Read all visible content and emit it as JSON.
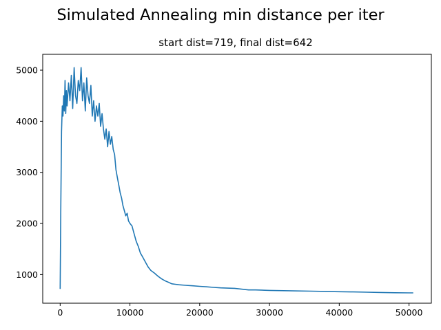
{
  "figure": {
    "suptitle": "Simulated Annealing min distance per iter"
  },
  "chart_data": {
    "type": "line",
    "title": "start dist=719, final dist=642",
    "xlabel": "",
    "ylabel": "",
    "xlim": [
      -2500,
      53200
    ],
    "ylim": [
      440,
      5310
    ],
    "grid": false,
    "legend": "none",
    "line_color": "#1f77b4",
    "x_ticks": [
      0,
      10000,
      20000,
      30000,
      40000,
      50000
    ],
    "x_tick_labels": [
      "0",
      "10000",
      "20000",
      "30000",
      "40000",
      "50000"
    ],
    "y_ticks": [
      1000,
      2000,
      3000,
      4000,
      5000
    ],
    "y_tick_labels": [
      "1000",
      "2000",
      "3000",
      "4000",
      "5000"
    ],
    "series": [
      {
        "name": "",
        "x": [
          0,
          100,
          200,
          300,
          400,
          500,
          600,
          700,
          800,
          900,
          1000,
          1200,
          1400,
          1600,
          1800,
          2000,
          2200,
          2400,
          2600,
          2800,
          3000,
          3200,
          3400,
          3600,
          3800,
          4000,
          4200,
          4400,
          4600,
          4800,
          5000,
          5200,
          5400,
          5600,
          5800,
          6000,
          6200,
          6400,
          6600,
          6800,
          7000,
          7200,
          7400,
          7600,
          7800,
          8000,
          8200,
          8400,
          8600,
          8800,
          9000,
          9200,
          9400,
          9600,
          9800,
          10000,
          10300,
          10600,
          10900,
          11200,
          11500,
          11800,
          12200,
          12600,
          13000,
          13500,
          14000,
          14500,
          15000,
          15500,
          16000,
          16500,
          17000,
          18000,
          19000,
          20000,
          21000,
          22000,
          23000,
          24000,
          25000,
          26000,
          27000,
          28000,
          30000,
          32000,
          34000,
          36000,
          38000,
          40000,
          42000,
          44000,
          46000,
          48000,
          50000,
          50600
        ],
        "values": [
          719,
          2400,
          3800,
          4300,
          4100,
          4500,
          4200,
          4800,
          4150,
          4600,
          4300,
          4750,
          4400,
          4900,
          4250,
          5050,
          4500,
          4350,
          4800,
          4600,
          5050,
          4400,
          4750,
          4200,
          4850,
          4500,
          4350,
          4700,
          4100,
          4400,
          4000,
          4300,
          4100,
          4350,
          3900,
          4150,
          3850,
          3650,
          3850,
          3500,
          3800,
          3550,
          3700,
          3450,
          3350,
          3050,
          2900,
          2750,
          2600,
          2500,
          2350,
          2250,
          2150,
          2200,
          2050,
          2000,
          1950,
          1800,
          1650,
          1550,
          1420,
          1350,
          1250,
          1150,
          1080,
          1030,
          970,
          920,
          880,
          850,
          820,
          810,
          800,
          790,
          780,
          770,
          760,
          750,
          740,
          735,
          730,
          715,
          700,
          700,
          690,
          685,
          680,
          675,
          670,
          665,
          660,
          655,
          650,
          645,
          642,
          642
        ]
      }
    ]
  }
}
